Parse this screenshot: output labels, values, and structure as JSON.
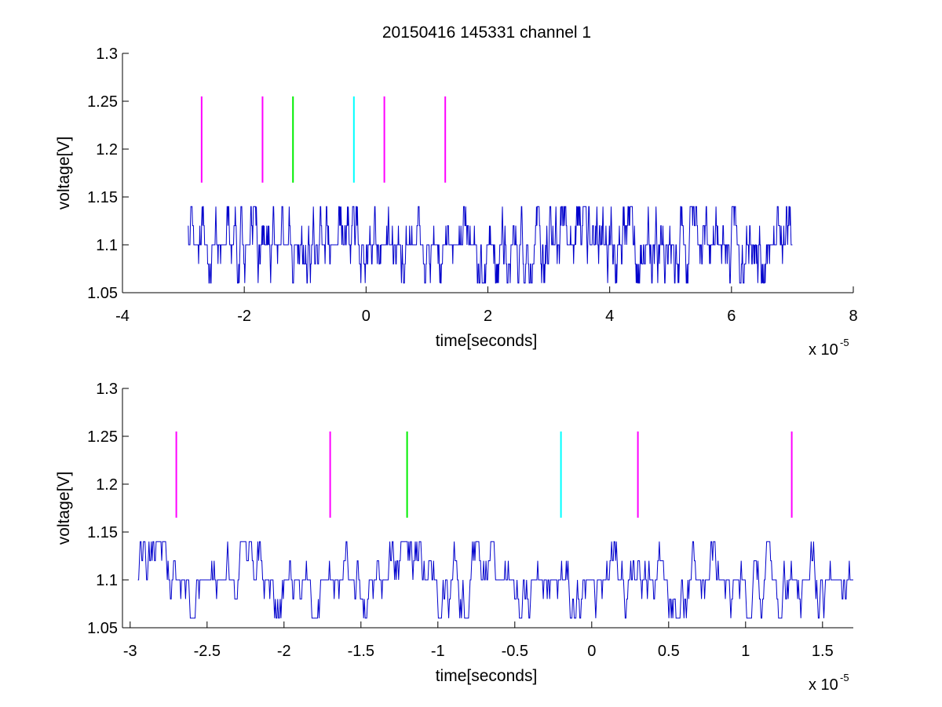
{
  "figure": {
    "title": "20150416 145331 channel 1"
  },
  "chart_data": [
    {
      "type": "line",
      "title": "20150416 145331 channel 1",
      "xlabel": "time[seconds]",
      "ylabel": "voltage[V]",
      "x_multiplier": "x 10",
      "x_multiplier_exponent": "-5",
      "xlim": [
        -4,
        8
      ],
      "ylim": [
        1.05,
        1.3
      ],
      "xticks": [
        -4,
        -2,
        0,
        2,
        4,
        6,
        8
      ],
      "xtick_labels": [
        "-4",
        "-2",
        "0",
        "2",
        "4",
        "6",
        "8"
      ],
      "yticks": [
        1.05,
        1.1,
        1.15,
        1.2,
        1.25,
        1.3
      ],
      "ytick_labels": [
        "1.05",
        "1.1",
        "1.15",
        "1.2",
        "1.25",
        "1.3"
      ],
      "grid": false,
      "series": [
        {
          "color": "#0000cc",
          "x_range": [
            -2.92,
            7.0
          ],
          "baseline": 1.1,
          "levels": [
            1.06,
            1.08,
            1.1,
            1.12,
            1.14
          ]
        }
      ],
      "markers": [
        {
          "x": -2.7,
          "y_range": [
            1.165,
            1.255
          ],
          "color": "#ff00ff"
        },
        {
          "x": -1.7,
          "y_range": [
            1.165,
            1.255
          ],
          "color": "#ff00ff"
        },
        {
          "x": -1.2,
          "y_range": [
            1.165,
            1.255
          ],
          "color": "#00ee00"
        },
        {
          "x": -0.2,
          "y_range": [
            1.165,
            1.255
          ],
          "color": "#00ffff"
        },
        {
          "x": 0.3,
          "y_range": [
            1.165,
            1.255
          ],
          "color": "#ff00ff"
        },
        {
          "x": 1.3,
          "y_range": [
            1.165,
            1.255
          ],
          "color": "#ff00ff"
        }
      ]
    },
    {
      "type": "line",
      "title": "",
      "xlabel": "time[seconds]",
      "ylabel": "voltage[V]",
      "x_multiplier": "x 10",
      "x_multiplier_exponent": "-5",
      "xlim": [
        -3.05,
        1.7
      ],
      "ylim": [
        1.05,
        1.3
      ],
      "xticks": [
        -3,
        -2.5,
        -2,
        -1.5,
        -1,
        -0.5,
        0,
        0.5,
        1,
        1.5
      ],
      "xtick_labels": [
        "-3",
        "-2.5",
        "-2",
        "-1.5",
        "-1",
        "-0.5",
        "0",
        "0.5",
        "1",
        "1.5"
      ],
      "yticks": [
        1.05,
        1.1,
        1.15,
        1.2,
        1.25,
        1.3
      ],
      "ytick_labels": [
        "1.05",
        "1.1",
        "1.15",
        "1.2",
        "1.25",
        "1.3"
      ],
      "grid": false,
      "series": [
        {
          "color": "#0000cc",
          "x_range": [
            -2.95,
            1.7
          ],
          "baseline": 1.1,
          "levels": [
            1.06,
            1.08,
            1.1,
            1.12,
            1.14
          ]
        }
      ],
      "markers": [
        {
          "x": -2.7,
          "y_range": [
            1.165,
            1.255
          ],
          "color": "#ff00ff"
        },
        {
          "x": -1.7,
          "y_range": [
            1.165,
            1.255
          ],
          "color": "#ff00ff"
        },
        {
          "x": -1.2,
          "y_range": [
            1.165,
            1.255
          ],
          "color": "#00ee00"
        },
        {
          "x": -0.2,
          "y_range": [
            1.165,
            1.255
          ],
          "color": "#00ffff"
        },
        {
          "x": 0.3,
          "y_range": [
            1.165,
            1.255
          ],
          "color": "#ff00ff"
        },
        {
          "x": 1.3,
          "y_range": [
            1.165,
            1.255
          ],
          "color": "#ff00ff"
        }
      ]
    }
  ]
}
